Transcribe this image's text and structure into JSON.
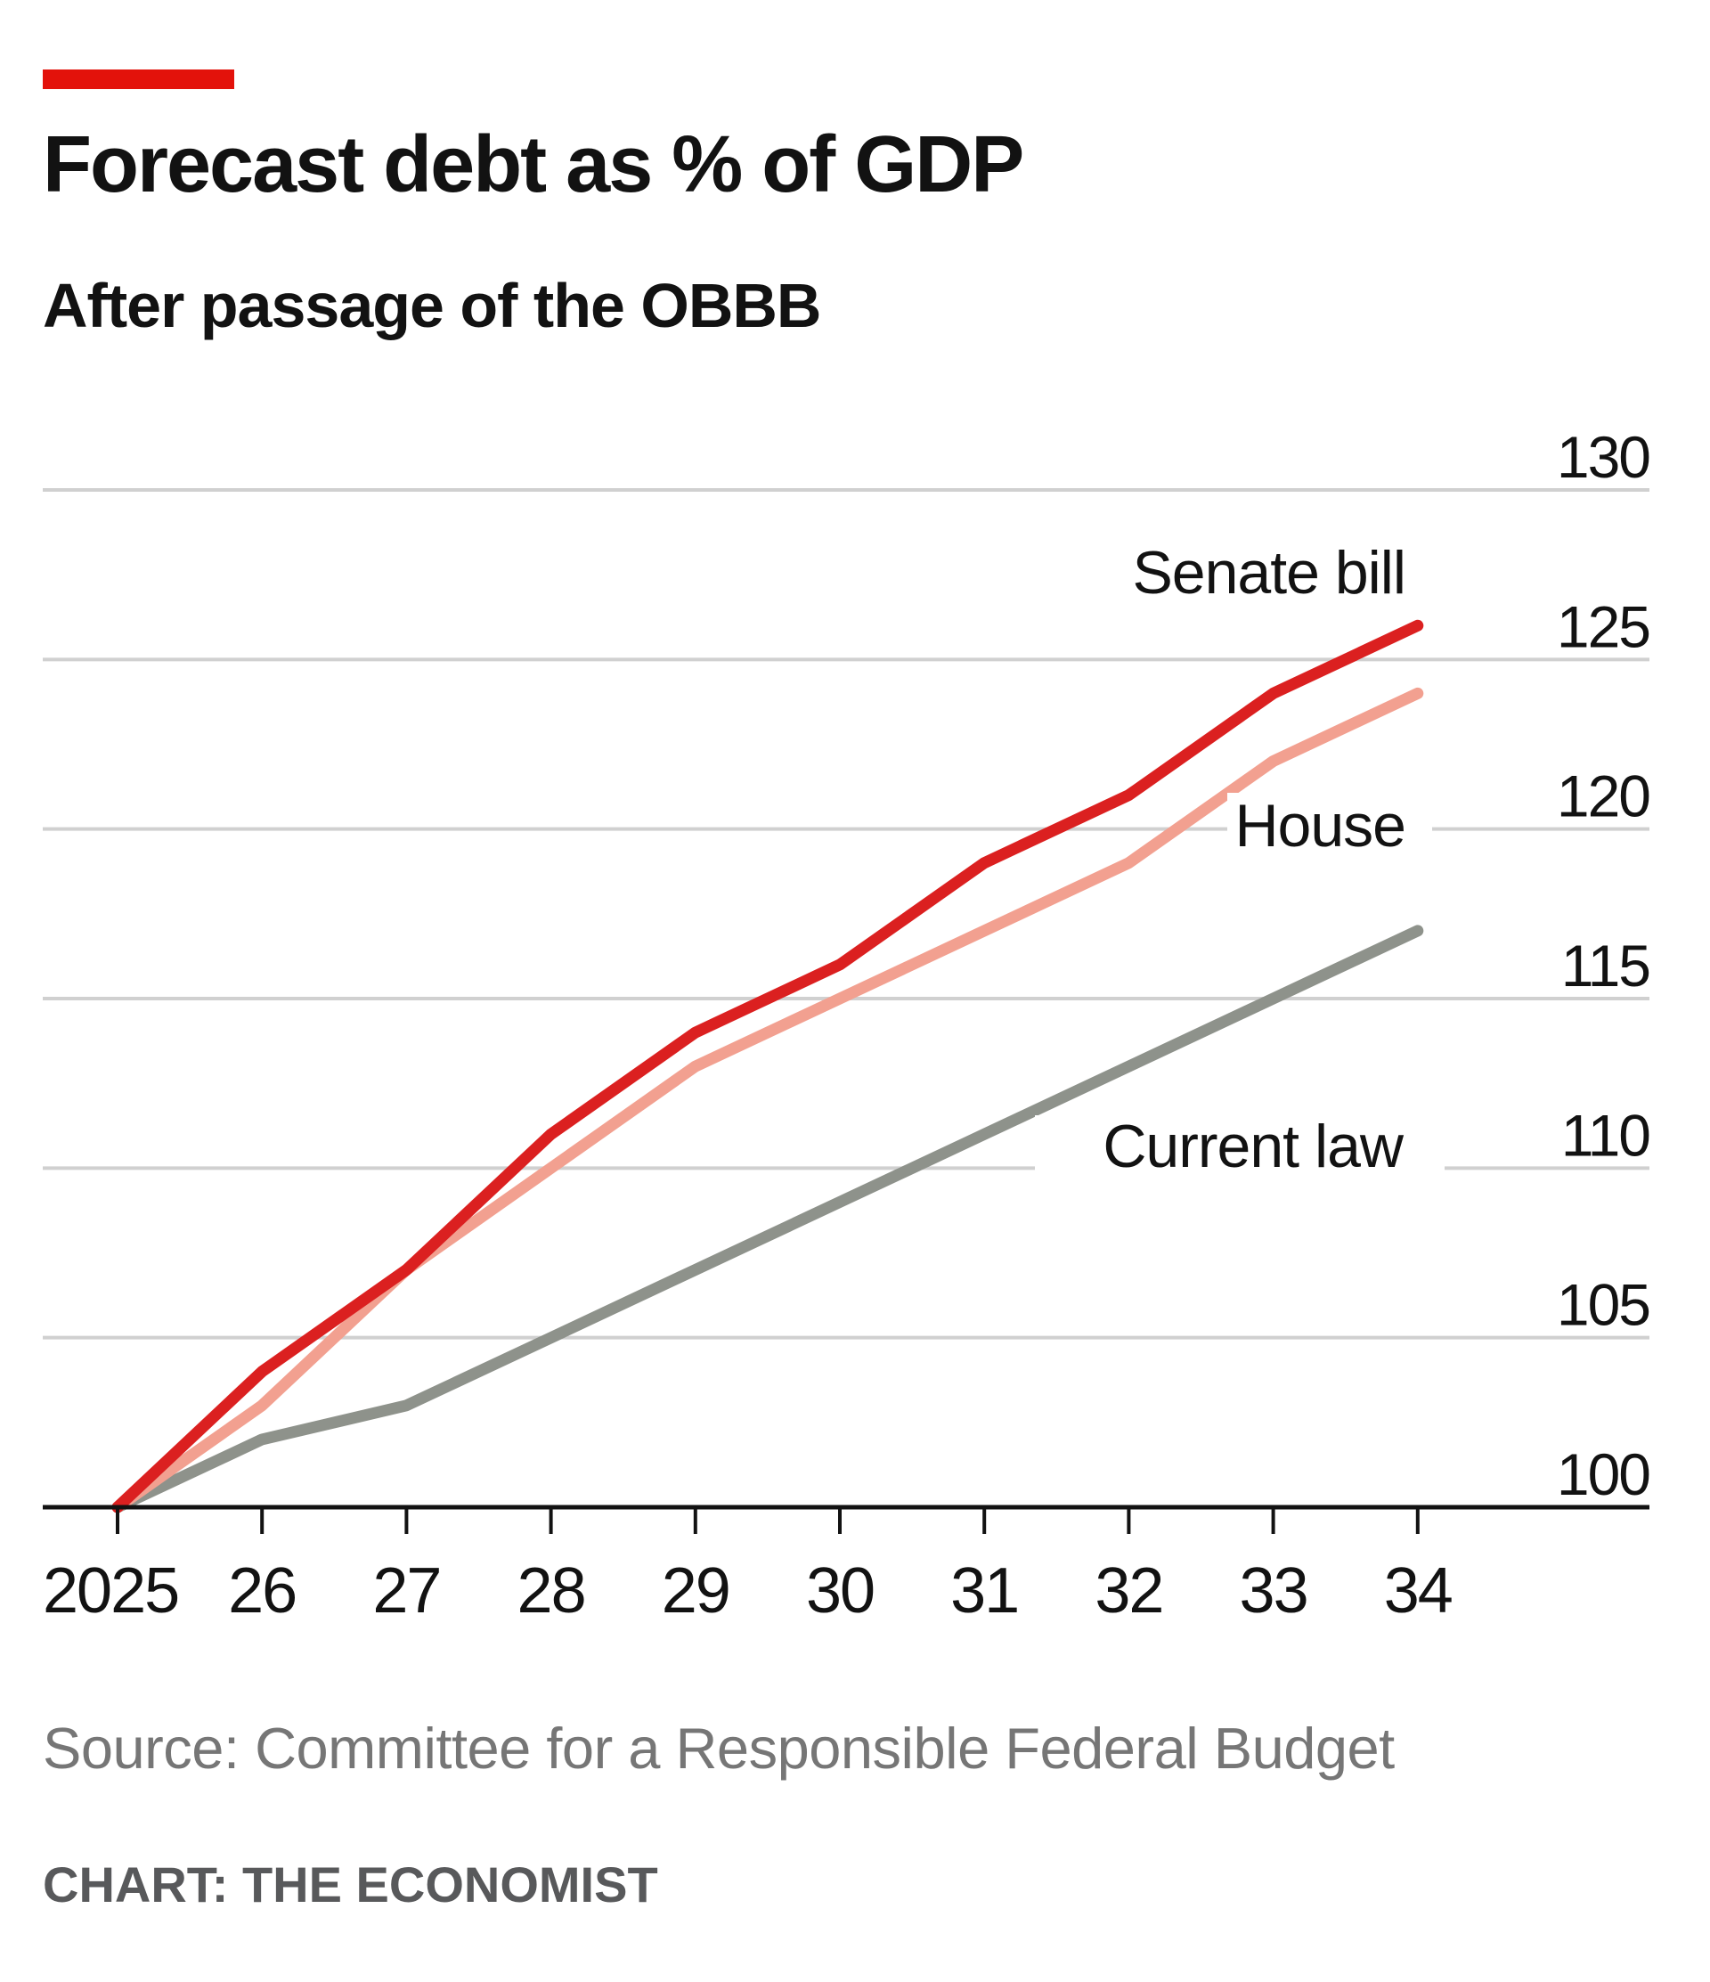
{
  "colors": {
    "accent": "#e3120b",
    "senate": "#db2020",
    "house": "#f2a090",
    "current_law": "#8e928b",
    "grid": "#d0d0d0",
    "axis": "#121212"
  },
  "header": {
    "title": "Forecast debt as % of GDP",
    "subtitle": "After passage of the OBBB"
  },
  "footer": {
    "source": "Source: Committee for a Responsible Federal Budget",
    "credit": "CHART: THE ECONOMIST"
  },
  "chart_data": {
    "type": "line",
    "title": "Forecast debt as % of GDP",
    "subtitle": "After passage of the OBBB",
    "x": [
      2025,
      2026,
      2027,
      2028,
      2029,
      2030,
      2031,
      2032,
      2033,
      2034
    ],
    "x_tick_labels": [
      "2025",
      "26",
      "27",
      "28",
      "29",
      "30",
      "31",
      "32",
      "33",
      "34"
    ],
    "y_ticks": [
      100,
      105,
      110,
      115,
      120,
      125,
      130
    ],
    "y_tick_labels": [
      "100",
      "105",
      "110",
      "115",
      "120",
      "125",
      "130"
    ],
    "ylim": [
      100,
      130
    ],
    "y_axis_position": "right",
    "grid": true,
    "xlabel": "",
    "ylabel": "",
    "series": [
      {
        "name": "Senate bill",
        "color": "#db2020",
        "values": [
          100,
          104,
          107,
          111,
          114,
          116,
          119,
          121,
          124,
          126
        ]
      },
      {
        "name": "House",
        "color": "#f2a090",
        "values": [
          100,
          103,
          107,
          110,
          113,
          115,
          117,
          119,
          122,
          124
        ]
      },
      {
        "name": "Current law",
        "color": "#8e928b",
        "values": [
          100,
          102,
          103,
          105,
          107,
          109,
          111,
          113,
          115,
          117
        ]
      }
    ]
  }
}
